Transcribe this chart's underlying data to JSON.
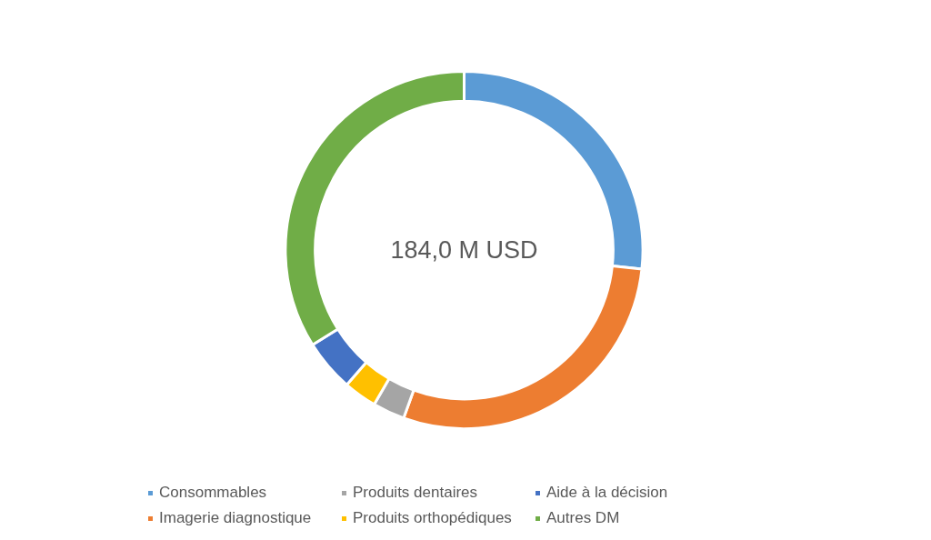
{
  "chart_data": {
    "type": "donut",
    "categories": [
      "Consommables",
      "Imagerie diagnostique",
      "Produits dentaires",
      "Produits orthopédiques",
      "Aide à la décision",
      "Autres DM"
    ],
    "values": [
      26.7,
      28.8,
      2.9,
      3.0,
      4.7,
      33.9
    ],
    "colors": [
      "#5b9bd5",
      "#ed7d31",
      "#a5a5a5",
      "#ffc000",
      "#4472c4",
      "#70ad47"
    ],
    "annotations": [
      "184,0 M USD"
    ],
    "legend": "bottom"
  }
}
